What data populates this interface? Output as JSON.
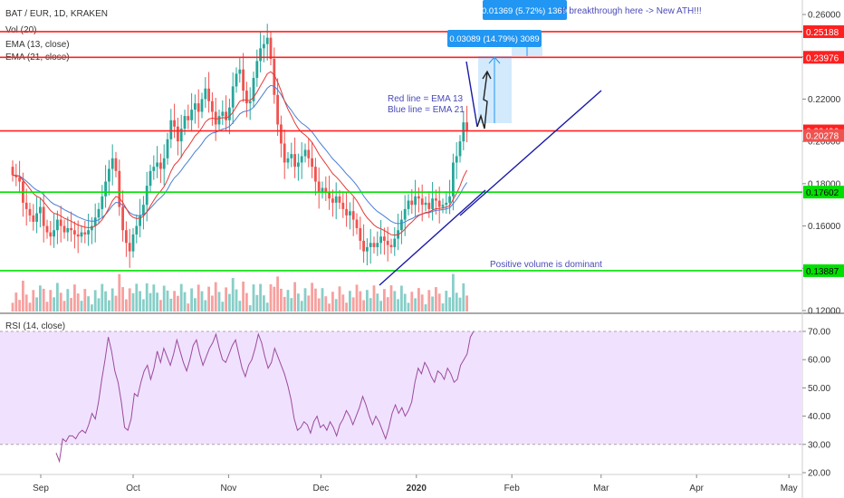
{
  "header": {
    "symbol": "BAT / EUR, 1D, KRAKEN",
    "vol": "Vol (20)",
    "ema13": "EMA (13, close)",
    "ema21": "EMA (21, close)",
    "rsi": "RSI (14, close)"
  },
  "colors": {
    "up": "#26a69a",
    "down": "#ef5350",
    "ema13": "#e53935",
    "ema21": "#4a7fd6",
    "trend": "#1a1aa8",
    "support": "#00e000",
    "resistance": "#ff2020",
    "rsi": "#9c4a9c",
    "rsi_band": "#f0e2ff",
    "measure": "#2196f3"
  },
  "chart_data": [
    {
      "type": "candlestick",
      "title": "BAT / EUR, 1D, KRAKEN",
      "x_ticks": [
        "Sep",
        "Oct",
        "Nov",
        "Dec",
        "2020",
        "Feb",
        "Mar",
        "Apr",
        "May"
      ],
      "y_ticks": [
        "0.26000",
        "0.24000",
        "0.22000",
        "0.20000",
        "0.18000",
        "0.16000",
        "0.14000",
        "0.12000"
      ],
      "ylim": [
        0.12,
        0.264
      ],
      "horizontal_levels": [
        {
          "label": "0.25188",
          "value": 0.25188,
          "kind": "resistance"
        },
        {
          "label": "0.23976",
          "value": 0.23976,
          "kind": "resistance"
        },
        {
          "label": "0.20496",
          "value": 0.20496,
          "kind": "resistance"
        },
        {
          "label": "0.20278",
          "value": 0.20278,
          "kind": "last_price"
        },
        {
          "label": "0.17602",
          "value": 0.17602,
          "kind": "support"
        },
        {
          "label": "0.13887",
          "value": 0.13887,
          "kind": "support"
        }
      ],
      "series_close": [
        0.184,
        0.183,
        0.181,
        0.171,
        0.168,
        0.165,
        0.162,
        0.166,
        0.169,
        0.16,
        0.157,
        0.155,
        0.158,
        0.163,
        0.16,
        0.157,
        0.159,
        0.158,
        0.156,
        0.155,
        0.157,
        0.156,
        0.158,
        0.16,
        0.164,
        0.168,
        0.174,
        0.181,
        0.187,
        0.192,
        0.186,
        0.169,
        0.158,
        0.152,
        0.148,
        0.156,
        0.16,
        0.165,
        0.17,
        0.179,
        0.186,
        0.188,
        0.19,
        0.187,
        0.192,
        0.201,
        0.21,
        0.207,
        0.2,
        0.206,
        0.212,
        0.21,
        0.215,
        0.218,
        0.214,
        0.22,
        0.225,
        0.219,
        0.214,
        0.208,
        0.212,
        0.214,
        0.21,
        0.216,
        0.226,
        0.232,
        0.234,
        0.224,
        0.218,
        0.219,
        0.23,
        0.238,
        0.244,
        0.246,
        0.249,
        0.239,
        0.222,
        0.208,
        0.199,
        0.19,
        0.192,
        0.194,
        0.188,
        0.19,
        0.193,
        0.196,
        0.192,
        0.188,
        0.181,
        0.176,
        0.178,
        0.176,
        0.173,
        0.171,
        0.174,
        0.171,
        0.168,
        0.165,
        0.167,
        0.163,
        0.159,
        0.153,
        0.148,
        0.15,
        0.152,
        0.15,
        0.152,
        0.155,
        0.153,
        0.151,
        0.15,
        0.154,
        0.158,
        0.163,
        0.168,
        0.172,
        0.17,
        0.174,
        0.173,
        0.17,
        0.171,
        0.168,
        0.173,
        0.172,
        0.169,
        0.17,
        0.171,
        0.174,
        0.19,
        0.193,
        0.2,
        0.209,
        0.205
      ],
      "volume_note": "Positive volume is dominant",
      "annotations": [
        "Red line = EMA 13",
        "Blue line = EMA 21",
        "If breakthrough here -> New ATH!!!"
      ],
      "measure_boxes": [
        {
          "label": "0.03089 (14.79%) 3089"
        },
        {
          "label": "0.01369 (5.72%) 1369"
        }
      ]
    },
    {
      "type": "line",
      "title": "RSI (14, close)",
      "y_ticks": [
        "70.00",
        "60.00",
        "50.00",
        "40.00",
        "30.00",
        "20.00"
      ],
      "ylim": [
        20,
        72
      ],
      "bands": [
        30,
        70
      ],
      "values": [
        27,
        24,
        32,
        31,
        33,
        33,
        32,
        34,
        35,
        34,
        37,
        41,
        39,
        45,
        53,
        60,
        68,
        63,
        56,
        52,
        45,
        36,
        35,
        39,
        48,
        47,
        52,
        56,
        58,
        53,
        57,
        63,
        59,
        64,
        61,
        58,
        62,
        67,
        63,
        59,
        56,
        60,
        65,
        67,
        62,
        58,
        61,
        64,
        66,
        69,
        64,
        60,
        59,
        62,
        65,
        67,
        62,
        57,
        54,
        58,
        60,
        64,
        69,
        66,
        61,
        57,
        59,
        64,
        61,
        58,
        55,
        51,
        46,
        39,
        35,
        36,
        38,
        37,
        34,
        38,
        40,
        36,
        37,
        35,
        38,
        36,
        33,
        37,
        39,
        42,
        40,
        37,
        40,
        43,
        47,
        44,
        40,
        37,
        40,
        38,
        35,
        32,
        36,
        41,
        44,
        41,
        43,
        40,
        42,
        45,
        52,
        57,
        55,
        59,
        57,
        54,
        52,
        56,
        55,
        53,
        57,
        55,
        52,
        53,
        58,
        60,
        62,
        68,
        70
      ]
    }
  ]
}
